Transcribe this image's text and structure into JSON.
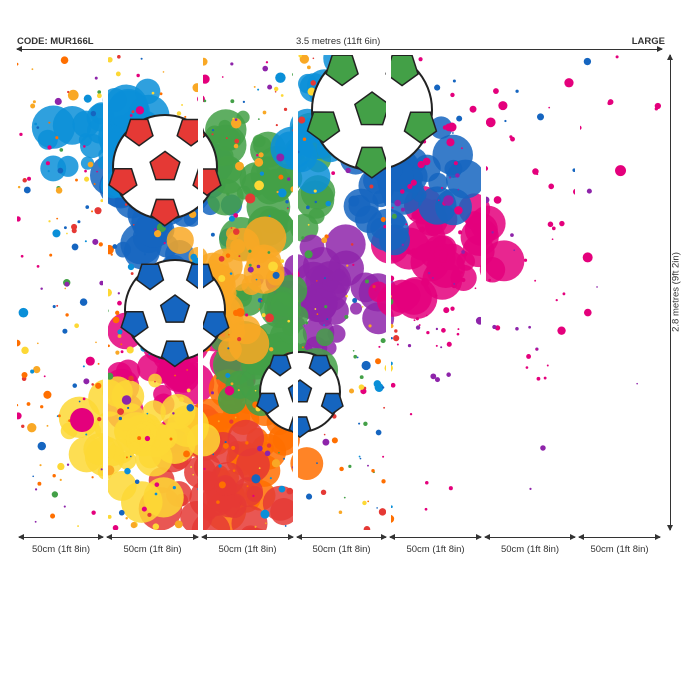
{
  "header": {
    "code": "CODE: MUR166L",
    "width": "3.5 metres (11ft 6in)",
    "size": "LARGE"
  },
  "height_label": "2.8 metres (9ft 2in)",
  "panels": [
    {
      "label": "50cm (1ft 8in)"
    },
    {
      "label": "50cm (1ft 8in)"
    },
    {
      "label": "50cm (1ft 8in)"
    },
    {
      "label": "50cm (1ft 8in)"
    },
    {
      "label": "50cm (1ft 8in)"
    },
    {
      "label": "50cm (1ft 8in)"
    },
    {
      "label": "50cm (1ft 8in)"
    }
  ],
  "artwork": {
    "subject": "paint-splatter-soccer-balls",
    "palette": [
      "#1565c0",
      "#0a8fd8",
      "#e4007c",
      "#e53935",
      "#f9a825",
      "#fdd835",
      "#43a047",
      "#8e24aa",
      "#ff6f00"
    ]
  }
}
